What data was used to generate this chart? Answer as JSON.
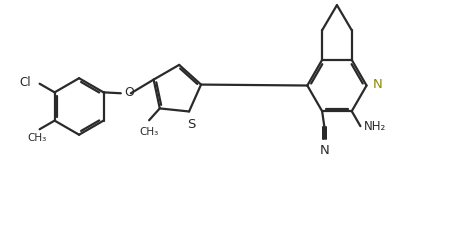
{
  "bg_color": "#ffffff",
  "line_color": "#2a2a2a",
  "n_color": "#8B8B00",
  "bond_lw": 1.6,
  "fig_width": 4.57,
  "fig_height": 2.33,
  "dpi": 100,
  "xlim": [
    0,
    10
  ],
  "ylim": [
    0,
    5
  ]
}
